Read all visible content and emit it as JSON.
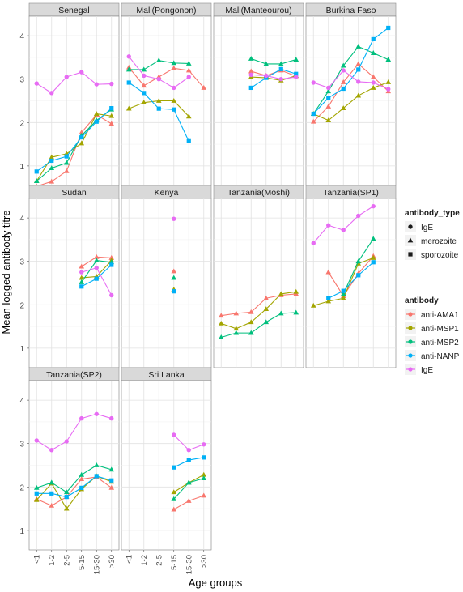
{
  "chart_data": {
    "type": "line",
    "ylabel": "Mean logged antibody titre",
    "xlabel": "Age groups",
    "categories": [
      "<1",
      "1-2",
      "2-5",
      "5-15",
      "15-30",
      ">30"
    ],
    "y_ticks": [
      "1",
      "2",
      "3",
      "4"
    ],
    "ylim": [
      0.55,
      4.45
    ],
    "grid": true,
    "legend_position": "right",
    "legend": {
      "shape_title": "antibody_type",
      "shapes": [
        {
          "label": "IgE",
          "shape": "circle"
        },
        {
          "label": "merozoite",
          "shape": "triangle"
        },
        {
          "label": "sporozoite",
          "shape": "square"
        }
      ],
      "color_title": "antibody",
      "colors": [
        {
          "label": "anti-AMA1",
          "color": "#F8766D"
        },
        {
          "label": "anti-MSP1",
          "color": "#A3A500"
        },
        {
          "label": "anti-MSP2",
          "color": "#00BF7D"
        },
        {
          "label": "anti-NANP",
          "color": "#00B0F6"
        },
        {
          "label": "IgE",
          "color": "#E76BF3"
        }
      ]
    },
    "panels": [
      {
        "title": "Senegal",
        "series": [
          {
            "name": "anti-AMA1",
            "values": [
              0.53,
              0.64,
              0.88,
              1.77,
              2.18,
              1.97
            ]
          },
          {
            "name": "anti-MSP1",
            "values": [
              0.65,
              1.2,
              1.28,
              1.52,
              2.2,
              2.15
            ]
          },
          {
            "name": "anti-MSP2",
            "values": [
              0.65,
              0.95,
              1.07,
              1.7,
              2.05,
              2.3
            ]
          },
          {
            "name": "anti-NANP",
            "values": [
              0.87,
              1.12,
              1.22,
              1.66,
              2.02,
              2.33
            ]
          },
          {
            "name": "IgE",
            "values": [
              2.9,
              2.68,
              3.05,
              3.16,
              2.88,
              2.89
            ]
          }
        ]
      },
      {
        "title": "Mali(Pongonon)",
        "series": [
          {
            "name": "anti-AMA1",
            "values": [
              3.27,
              2.85,
              3.05,
              3.25,
              3.2,
              2.8
            ]
          },
          {
            "name": "anti-MSP1",
            "values": [
              2.32,
              2.46,
              2.5,
              2.5,
              2.14,
              null
            ]
          },
          {
            "name": "anti-MSP2",
            "values": [
              3.22,
              3.22,
              3.43,
              3.37,
              3.36,
              null
            ]
          },
          {
            "name": "anti-NANP",
            "values": [
              2.92,
              2.68,
              2.32,
              2.3,
              1.57,
              null
            ]
          },
          {
            "name": "IgE",
            "values": [
              3.52,
              3.08,
              3.0,
              2.8,
              3.05,
              null
            ]
          }
        ]
      },
      {
        "title": "Mali(Manteourou)",
        "series": [
          {
            "name": "anti-AMA1",
            "values": [
              null,
              null,
              3.18,
              3.08,
              3.2,
              3.07
            ]
          },
          {
            "name": "anti-MSP1",
            "values": [
              null,
              null,
              3.05,
              3.03,
              2.97,
              3.08
            ]
          },
          {
            "name": "anti-MSP2",
            "values": [
              null,
              null,
              3.47,
              3.35,
              3.35,
              3.45
            ]
          },
          {
            "name": "anti-NANP",
            "values": [
              null,
              null,
              2.8,
              3.03,
              3.23,
              3.12
            ]
          },
          {
            "name": "IgE",
            "values": [
              null,
              null,
              3.1,
              3.08,
              3.0,
              3.05
            ]
          }
        ]
      },
      {
        "title": "Burkina Faso",
        "series": [
          {
            "name": "anti-AMA1",
            "values": [
              2.02,
              2.37,
              2.93,
              3.35,
              3.05,
              2.72
            ]
          },
          {
            "name": "anti-MSP1",
            "values": [
              2.2,
              2.05,
              2.33,
              2.62,
              2.8,
              2.93
            ]
          },
          {
            "name": "anti-MSP2",
            "values": [
              2.2,
              2.72,
              3.31,
              3.75,
              3.6,
              3.45
            ]
          },
          {
            "name": "anti-NANP",
            "values": [
              2.2,
              2.57,
              2.78,
              3.22,
              3.92,
              4.18
            ]
          },
          {
            "name": "IgE",
            "values": [
              2.92,
              2.8,
              3.2,
              2.94,
              2.92,
              2.77
            ]
          }
        ]
      },
      {
        "title": "Sudan",
        "series": [
          {
            "name": "anti-AMA1",
            "values": [
              null,
              null,
              null,
              2.88,
              3.1,
              3.08
            ]
          },
          {
            "name": "anti-MSP1",
            "values": [
              null,
              null,
              null,
              2.62,
              2.65,
              3.02
            ]
          },
          {
            "name": "anti-MSP2",
            "values": [
              null,
              null,
              null,
              2.52,
              3.02,
              2.98
            ]
          },
          {
            "name": "anti-NANP",
            "values": [
              null,
              null,
              null,
              2.42,
              2.6,
              2.92
            ]
          },
          {
            "name": "IgE",
            "values": [
              null,
              null,
              null,
              2.75,
              2.85,
              2.22
            ]
          }
        ]
      },
      {
        "title": "Kenya",
        "series": [
          {
            "name": "anti-AMA1",
            "values": [
              null,
              null,
              null,
              2.77,
              null,
              null
            ]
          },
          {
            "name": "anti-MSP1",
            "values": [
              null,
              null,
              null,
              2.35,
              null,
              null
            ]
          },
          {
            "name": "anti-MSP2",
            "values": [
              null,
              null,
              null,
              2.62,
              null,
              null
            ]
          },
          {
            "name": "anti-NANP",
            "values": [
              null,
              null,
              null,
              2.31,
              null,
              null
            ]
          },
          {
            "name": "IgE",
            "values": [
              null,
              null,
              null,
              3.98,
              null,
              null
            ]
          }
        ]
      },
      {
        "title": "Tanzania(Moshi)",
        "series": [
          {
            "name": "anti-AMA1",
            "values": [
              1.75,
              1.8,
              1.83,
              2.15,
              2.22,
              2.25
            ]
          },
          {
            "name": "anti-MSP1",
            "values": [
              1.57,
              1.45,
              1.6,
              1.9,
              2.25,
              2.3
            ]
          },
          {
            "name": "anti-MSP2",
            "values": [
              1.25,
              1.35,
              1.35,
              1.6,
              1.8,
              1.82
            ]
          },
          {
            "name": "anti-NANP",
            "values": [
              null,
              null,
              null,
              null,
              null,
              null
            ]
          },
          {
            "name": "IgE",
            "values": [
              null,
              null,
              null,
              null,
              null,
              null
            ]
          }
        ]
      },
      {
        "title": "Tanzania(SP1)",
        "series": [
          {
            "name": "anti-AMA1",
            "values": [
              null,
              2.75,
              2.2,
              2.72,
              3.12,
              null
            ]
          },
          {
            "name": "anti-MSP1",
            "values": [
              1.98,
              2.08,
              2.15,
              2.95,
              3.08,
              null
            ]
          },
          {
            "name": "anti-MSP2",
            "values": [
              null,
              null,
              2.25,
              3.0,
              3.52,
              null
            ]
          },
          {
            "name": "anti-NANP",
            "values": [
              null,
              2.15,
              2.32,
              2.68,
              2.98,
              null
            ]
          },
          {
            "name": "IgE",
            "values": [
              3.42,
              3.83,
              3.72,
              4.05,
              4.27,
              null
            ]
          }
        ]
      },
      {
        "title": "Tanzania(SP2)",
        "series": [
          {
            "name": "anti-AMA1",
            "values": [
              1.72,
              1.57,
              1.77,
              2.18,
              2.23,
              1.98
            ]
          },
          {
            "name": "anti-MSP1",
            "values": [
              1.7,
              2.08,
              1.5,
              1.95,
              2.25,
              2.12
            ]
          },
          {
            "name": "anti-MSP2",
            "values": [
              1.98,
              2.1,
              1.88,
              2.28,
              2.5,
              2.4
            ]
          },
          {
            "name": "anti-NANP",
            "values": [
              1.85,
              1.85,
              1.77,
              1.98,
              2.25,
              2.15
            ]
          },
          {
            "name": "IgE",
            "values": [
              3.07,
              2.85,
              3.05,
              3.58,
              3.68,
              3.58
            ]
          }
        ]
      },
      {
        "title": "Sri Lanka",
        "series": [
          {
            "name": "anti-AMA1",
            "values": [
              null,
              null,
              null,
              1.48,
              1.68,
              1.8
            ]
          },
          {
            "name": "anti-MSP1",
            "values": [
              null,
              null,
              null,
              1.88,
              2.1,
              2.28
            ]
          },
          {
            "name": "anti-MSP2",
            "values": [
              null,
              null,
              null,
              1.72,
              2.1,
              2.2
            ]
          },
          {
            "name": "anti-NANP",
            "values": [
              null,
              null,
              null,
              2.45,
              2.62,
              2.68
            ]
          },
          {
            "name": "IgE",
            "values": [
              null,
              null,
              null,
              3.2,
              2.85,
              2.98
            ]
          }
        ]
      }
    ]
  }
}
